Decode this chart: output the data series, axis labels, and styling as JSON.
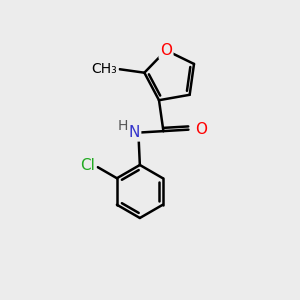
{
  "background_color": "#ececec",
  "bond_color": "#000000",
  "bond_width": 1.8,
  "atom_colors": {
    "O": "#ff0000",
    "N": "#3333cc",
    "Cl": "#22aa22",
    "C": "#000000",
    "H": "#555555"
  },
  "font_size": 10,
  "figsize": [
    3.0,
    3.0
  ],
  "dpi": 100
}
